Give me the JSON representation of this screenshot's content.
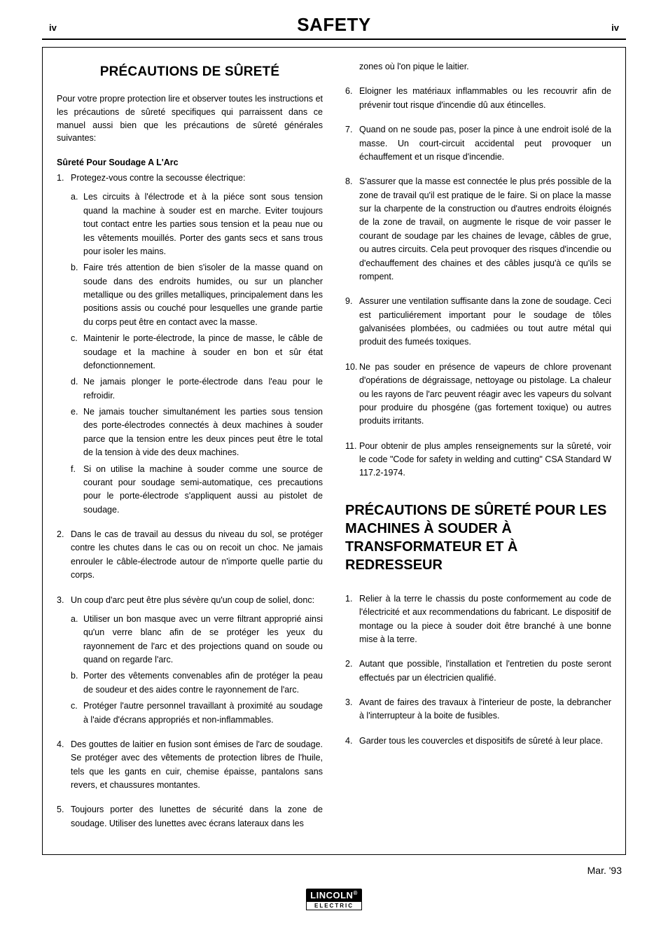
{
  "colors": {
    "text": "#000000",
    "background": "#ffffff",
    "border": "#000000",
    "logo_bg": "#000000",
    "logo_fg": "#ffffff"
  },
  "typography": {
    "body_font": "Arial, Helvetica, sans-serif",
    "body_size_pt": 9,
    "title_size_pt": 20,
    "section_title_size_pt": 14,
    "big_heading_size_pt": 15
  },
  "header": {
    "page_left": "iv",
    "title": "SAFETY",
    "page_right": "iv"
  },
  "left_column": {
    "section_title": "PRÉCAUTIONS DE SÛRETÉ",
    "intro": "Pour votre propre protection lire et observer toutes les instructions et les précautions de sûreté specifiques qui parraissent dans ce manuel aussi bien que les précautions de sûreté générales suivantes:",
    "sub_heading": "Sûreté Pour Soudage A L'Arc",
    "items": [
      {
        "text": "Protegez-vous contre la secousse électrique:",
        "sub": [
          "Les circuits à l'électrode et à la piéce sont sous tension quand la machine à souder est en marche. Eviter toujours tout contact entre les parties sous tension et la peau nue ou les vêtements mouillés. Porter des gants secs et sans trous pour isoler les mains.",
          "Faire trés attention de bien s'isoler de la masse quand on soude dans des endroits humides, ou sur un plancher metallique ou des grilles metalliques, principalement dans les positions assis ou couché pour lesquelles une grande partie du corps peut être en contact avec la masse.",
          "Maintenir le porte-électrode, la pince de masse, le câble de soudage et la machine à souder en bon et sûr état defonctionnement.",
          "Ne jamais plonger le porte-électrode dans l'eau pour le refroidir.",
          "Ne jamais toucher simultanément les parties sous tension des porte-électrodes connectés à deux machines à souder parce que la tension entre les deux pinces peut être le total de la tension à vide des deux machines.",
          "Si on utilise la machine à souder comme une source de courant pour soudage semi-automatique, ces precautions pour le porte-électrode s'appliquent aussi au pistolet de soudage."
        ]
      },
      {
        "text": "Dans le cas de travail au dessus du niveau du sol, se protéger contre les chutes dans le cas ou on recoit un choc. Ne jamais enrouler le câble-électrode autour de n'importe quelle partie du corps."
      },
      {
        "text": "Un coup d'arc peut être plus sévère qu'un coup de soliel, donc:",
        "sub": [
          "Utiliser un bon masque avec un verre filtrant approprié ainsi qu'un verre blanc afin de se protéger les yeux du rayonnement de l'arc et des projections quand on soude ou quand on regarde l'arc.",
          "Porter des vêtements convenables afin de protéger la peau de soudeur et des aides contre le rayonnement de l'arc.",
          "Protéger l'autre personnel travaillant à proximité au soudage à l'aide d'écrans appropriés et non-inflammables."
        ]
      },
      {
        "text": "Des gouttes de laitier en fusion sont émises de l'arc de soudage. Se protéger avec des vêtements de protection libres de l'huile, tels que les gants en cuir, chemise épaisse, pantalons sans revers, et chaussures montantes."
      },
      {
        "text": "Toujours porter des lunettes de sécurité dans la zone de soudage. Utiliser des lunettes avec écrans lateraux dans les"
      }
    ]
  },
  "right_column": {
    "cont_item5": "zones où l'on pique le laitier.",
    "items6_11": [
      "Eloigner les matériaux inflammables ou les recouvrir afin de prévenir tout risque d'incendie dû aux étincelles.",
      "Quand on ne soude pas, poser la pince à une endroit isolé de la masse. Un court-circuit accidental peut provoquer un échauffement et un risque d'incendie.",
      "S'assurer que la masse est connectée le plus prés possible de la zone de travail qu'il est pratique de le faire. Si on place la masse sur la charpente de la construction ou d'autres endroits éloignés de la zone de travail, on augmente le risque de voir passer le courant de soudage par les chaines de levage, câbles de grue, ou autres circuits. Cela peut provoquer des risques d'incendie ou d'echauffement des chaines et des câbles jusqu'à ce qu'ils se rompent.",
      "Assurer une ventilation suffisante dans la zone de soudage. Ceci est particuliérement important pour le soudage de tôles galvanisées plombées, ou cadmiées ou tout autre métal qui produit des fumeés toxiques.",
      "Ne pas souder en présence de vapeurs de chlore provenant d'opérations de dégraissage, nettoyage ou pistolage. La chaleur ou les rayons de l'arc peuvent réagir avec les vapeurs du solvant pour produire du phosgéne (gas fortement toxique) ou autres produits irritants.",
      "Pour obtenir de plus amples renseignements sur la sûreté, voir le code \"Code for safety in welding and cutting\" CSA Standard W 117.2-1974."
    ],
    "big_heading": "PRÉCAUTIONS DE SÛRETÉ POUR LES MACHINES À SOUDER À TRANSFORMATEUR ET À REDRESSEUR",
    "items_b": [
      "Relier à la terre le chassis du poste conformement au code de l'électricité et aux recommendations du fabricant. Le dispositif de montage ou la piece à souder doit être branché à une bonne mise à la terre.",
      "Autant que possible, l'installation et l'entretien du poste seront effectués par un électricien qualifié.",
      "Avant de faires des travaux à l'interieur de poste, la debrancher à l'interrupteur à la boite de fusibles.",
      "Garder tous les couvercles et dispositifs de sûreté à leur place."
    ]
  },
  "footer": {
    "date": "Mar. '93",
    "logo_top": "LINCOLN",
    "logo_reg": "®",
    "logo_bottom": "ELECTRIC"
  }
}
